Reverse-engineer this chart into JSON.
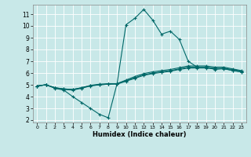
{
  "title": "",
  "xlabel": "Humidex (Indice chaleur)",
  "bg_color": "#c8e8e8",
  "line_color": "#006868",
  "xlim": [
    -0.5,
    23.5
  ],
  "ylim": [
    1.8,
    11.8
  ],
  "xticks": [
    0,
    1,
    2,
    3,
    4,
    5,
    6,
    7,
    8,
    9,
    10,
    11,
    12,
    13,
    14,
    15,
    16,
    17,
    18,
    19,
    20,
    21,
    22,
    23
  ],
  "yticks": [
    2,
    3,
    4,
    5,
    6,
    7,
    8,
    9,
    10,
    11
  ],
  "lines": [
    {
      "x": [
        0,
        1,
        2,
        3,
        4,
        5,
        6,
        7,
        8,
        9,
        10,
        11,
        12,
        13,
        14,
        15,
        16,
        17,
        18,
        19,
        20,
        21,
        22,
        23
      ],
      "y": [
        4.9,
        5.0,
        4.7,
        4.55,
        4.0,
        3.5,
        3.0,
        2.5,
        2.2,
        5.1,
        10.1,
        10.65,
        11.4,
        10.5,
        9.3,
        9.55,
        8.85,
        7.0,
        6.5,
        6.5,
        6.3,
        6.4,
        6.2,
        6.1
      ]
    },
    {
      "x": [
        0,
        1,
        2,
        3,
        4,
        5,
        6,
        7,
        8,
        9,
        10,
        11,
        12,
        13,
        14,
        15,
        16,
        17,
        18,
        19,
        20,
        21,
        22,
        23
      ],
      "y": [
        4.9,
        5.0,
        4.75,
        4.6,
        4.55,
        4.7,
        4.9,
        5.0,
        5.05,
        5.1,
        5.4,
        5.7,
        5.95,
        6.1,
        6.2,
        6.3,
        6.45,
        6.6,
        6.6,
        6.6,
        6.5,
        6.5,
        6.35,
        6.2
      ]
    },
    {
      "x": [
        0,
        1,
        2,
        3,
        4,
        5,
        6,
        7,
        8,
        9,
        10,
        11,
        12,
        13,
        14,
        15,
        16,
        17,
        18,
        19,
        20,
        21,
        22,
        23
      ],
      "y": [
        4.9,
        5.0,
        4.75,
        4.65,
        4.6,
        4.75,
        4.95,
        5.05,
        5.1,
        5.1,
        5.35,
        5.6,
        5.85,
        6.0,
        6.1,
        6.2,
        6.35,
        6.5,
        6.5,
        6.5,
        6.4,
        6.4,
        6.3,
        6.15
      ]
    },
    {
      "x": [
        0,
        1,
        2,
        3,
        4,
        5,
        6,
        7,
        8,
        9,
        10,
        11,
        12,
        13,
        14,
        15,
        16,
        17,
        18,
        19,
        20,
        21,
        22,
        23
      ],
      "y": [
        4.9,
        5.0,
        4.75,
        4.65,
        4.6,
        4.75,
        4.93,
        5.0,
        5.05,
        5.05,
        5.3,
        5.55,
        5.8,
        5.95,
        6.05,
        6.15,
        6.3,
        6.42,
        6.42,
        6.42,
        6.35,
        6.35,
        6.22,
        6.1
      ]
    }
  ]
}
